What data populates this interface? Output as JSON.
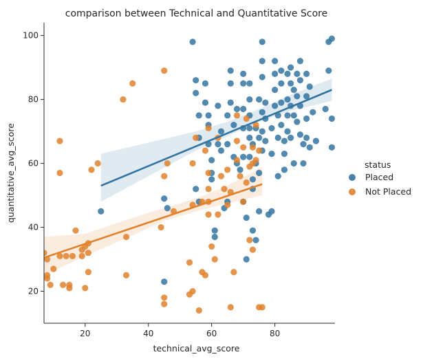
{
  "chart_data": {
    "type": "scatter",
    "title": "comparison between Technical and Quantitative Score",
    "xlabel": "technical_avg_score",
    "ylabel": "quantitative_avg_score",
    "xlim": [
      7,
      99
    ],
    "ylim": [
      10,
      104
    ],
    "xticks": [
      20,
      40,
      60,
      80
    ],
    "yticks": [
      20,
      40,
      60,
      80,
      100
    ],
    "grid": false,
    "legend": {
      "title": "status",
      "placement": "right"
    },
    "series": [
      {
        "name": "Placed",
        "color": "#3274a1",
        "points": [
          [
            25,
            45
          ],
          [
            45,
            49
          ],
          [
            45,
            23
          ],
          [
            46,
            46
          ],
          [
            54,
            98
          ],
          [
            55,
            86
          ],
          [
            55,
            82
          ],
          [
            56,
            75
          ],
          [
            56,
            68
          ],
          [
            55,
            52
          ],
          [
            56,
            48
          ],
          [
            58,
            85
          ],
          [
            58,
            79
          ],
          [
            59,
            75
          ],
          [
            59,
            72
          ],
          [
            59,
            66
          ],
          [
            60,
            61
          ],
          [
            60,
            57
          ],
          [
            60,
            55
          ],
          [
            61,
            39
          ],
          [
            61,
            37
          ],
          [
            62,
            66
          ],
          [
            62,
            78
          ],
          [
            63,
            70
          ],
          [
            63,
            64
          ],
          [
            64,
            46
          ],
          [
            65,
            48
          ],
          [
            65,
            75
          ],
          [
            65,
            66
          ],
          [
            66,
            89
          ],
          [
            66,
            85
          ],
          [
            66,
            79
          ],
          [
            67,
            72
          ],
          [
            67,
            62
          ],
          [
            68,
            77
          ],
          [
            68,
            60
          ],
          [
            69,
            58
          ],
          [
            70,
            88
          ],
          [
            70,
            85
          ],
          [
            70,
            77
          ],
          [
            70,
            71
          ],
          [
            70,
            62
          ],
          [
            70,
            48
          ],
          [
            71,
            43
          ],
          [
            71,
            30
          ],
          [
            72,
            85
          ],
          [
            72,
            80
          ],
          [
            72,
            75
          ],
          [
            72,
            71
          ],
          [
            72,
            68
          ],
          [
            72,
            62
          ],
          [
            73,
            66
          ],
          [
            73,
            55
          ],
          [
            73,
            52
          ],
          [
            73,
            39
          ],
          [
            74,
            71
          ],
          [
            74,
            60
          ],
          [
            74,
            36
          ],
          [
            75,
            80
          ],
          [
            75,
            68
          ],
          [
            75,
            57
          ],
          [
            75,
            45
          ],
          [
            76,
            98
          ],
          [
            76,
            92
          ],
          [
            76,
            87
          ],
          [
            76,
            76
          ],
          [
            76,
            70
          ],
          [
            76,
            64
          ],
          [
            77,
            79
          ],
          [
            77,
            74
          ],
          [
            77,
            67
          ],
          [
            78,
            44
          ],
          [
            79,
            45
          ],
          [
            79,
            63
          ],
          [
            79,
            71
          ],
          [
            80,
            92
          ],
          [
            80,
            88
          ],
          [
            80,
            83
          ],
          [
            80,
            78
          ],
          [
            81,
            75
          ],
          [
            81,
            68
          ],
          [
            81,
            56
          ],
          [
            82,
            89
          ],
          [
            82,
            85
          ],
          [
            82,
            79
          ],
          [
            82,
            72
          ],
          [
            83,
            67
          ],
          [
            83,
            63
          ],
          [
            83,
            58
          ],
          [
            84,
            88
          ],
          [
            84,
            80
          ],
          [
            84,
            75
          ],
          [
            84,
            70
          ],
          [
            85,
            90
          ],
          [
            85,
            85
          ],
          [
            85,
            78
          ],
          [
            85,
            68
          ],
          [
            86,
            83
          ],
          [
            86,
            75
          ],
          [
            86,
            60
          ],
          [
            87,
            88
          ],
          [
            87,
            81
          ],
          [
            87,
            73
          ],
          [
            88,
            92
          ],
          [
            88,
            86
          ],
          [
            88,
            78
          ],
          [
            88,
            69
          ],
          [
            89,
            60
          ],
          [
            89,
            66
          ],
          [
            90,
            88
          ],
          [
            90,
            81
          ],
          [
            90,
            74
          ],
          [
            90,
            68
          ],
          [
            91,
            84
          ],
          [
            91,
            65
          ],
          [
            92,
            76
          ],
          [
            93,
            67
          ],
          [
            96,
            77
          ],
          [
            97,
            98
          ],
          [
            97,
            89
          ],
          [
            98,
            99
          ],
          [
            98,
            74
          ],
          [
            98,
            65
          ]
        ],
        "fit": {
          "x": [
            25,
            98
          ],
          "y": [
            53,
            83
          ]
        },
        "ci_upper": [
          [
            25,
            63
          ],
          [
            40,
            66.5
          ],
          [
            55,
            70
          ],
          [
            65,
            73
          ],
          [
            75,
            77
          ],
          [
            85,
            81.5
          ],
          [
            98,
            86.5
          ]
        ],
        "ci_lower": [
          [
            25,
            48
          ],
          [
            40,
            56
          ],
          [
            55,
            64
          ],
          [
            65,
            68.5
          ],
          [
            75,
            73
          ],
          [
            85,
            76.5
          ],
          [
            98,
            79.5
          ]
        ]
      },
      {
        "name": "Not Placed",
        "color": "#e1812c",
        "points": [
          [
            7,
            32
          ],
          [
            8,
            30
          ],
          [
            8,
            25
          ],
          [
            8,
            24
          ],
          [
            9,
            22
          ],
          [
            10,
            27
          ],
          [
            12,
            67
          ],
          [
            12,
            57
          ],
          [
            12,
            31
          ],
          [
            13,
            22
          ],
          [
            14,
            31
          ],
          [
            15,
            22
          ],
          [
            15,
            21
          ],
          [
            16,
            31
          ],
          [
            17,
            39
          ],
          [
            19,
            33
          ],
          [
            19,
            31
          ],
          [
            20,
            34
          ],
          [
            20,
            21
          ],
          [
            21,
            32
          ],
          [
            21,
            26
          ],
          [
            21,
            35
          ],
          [
            22,
            58
          ],
          [
            24,
            60
          ],
          [
            32,
            80
          ],
          [
            33,
            37
          ],
          [
            33,
            25
          ],
          [
            35,
            85
          ],
          [
            44,
            40
          ],
          [
            45,
            89
          ],
          [
            45,
            56
          ],
          [
            45,
            18
          ],
          [
            45,
            16
          ],
          [
            46,
            60
          ],
          [
            48,
            45
          ],
          [
            53,
            29
          ],
          [
            53,
            19
          ],
          [
            54,
            47
          ],
          [
            54,
            20
          ],
          [
            54,
            60
          ],
          [
            55,
            68
          ],
          [
            56,
            14
          ],
          [
            57,
            48
          ],
          [
            57,
            26
          ],
          [
            58,
            64
          ],
          [
            58,
            25
          ],
          [
            59,
            71
          ],
          [
            59,
            57
          ],
          [
            59,
            52
          ],
          [
            59,
            48
          ],
          [
            59,
            44
          ],
          [
            60,
            34
          ],
          [
            61,
            30
          ],
          [
            62,
            68
          ],
          [
            62,
            44
          ],
          [
            63,
            56
          ],
          [
            64,
            52
          ],
          [
            65,
            58
          ],
          [
            65,
            47
          ],
          [
            66,
            51
          ],
          [
            66,
            15
          ],
          [
            67,
            26
          ],
          [
            68,
            75
          ],
          [
            68,
            67
          ],
          [
            68,
            61
          ],
          [
            69,
            56
          ],
          [
            70,
            65
          ],
          [
            70,
            48
          ],
          [
            71,
            74
          ],
          [
            71,
            54
          ],
          [
            72,
            59
          ],
          [
            72,
            36
          ],
          [
            73,
            65
          ],
          [
            73,
            60
          ],
          [
            73,
            33
          ],
          [
            74,
            72
          ],
          [
            74,
            61
          ],
          [
            75,
            64
          ],
          [
            75,
            15
          ],
          [
            76,
            15
          ]
        ],
        "fit": {
          "x": [
            7,
            76
          ],
          "y": [
            30.5,
            53.5
          ]
        },
        "ci_upper": [
          [
            7,
            37
          ],
          [
            20,
            38
          ],
          [
            35,
            43
          ],
          [
            45,
            46
          ],
          [
            55,
            49
          ],
          [
            65,
            53
          ],
          [
            76,
            59
          ]
        ],
        "ci_lower": [
          [
            7,
            25
          ],
          [
            20,
            31
          ],
          [
            35,
            37.5
          ],
          [
            45,
            42
          ],
          [
            55,
            45
          ],
          [
            65,
            47.5
          ],
          [
            76,
            50
          ]
        ]
      }
    ]
  }
}
